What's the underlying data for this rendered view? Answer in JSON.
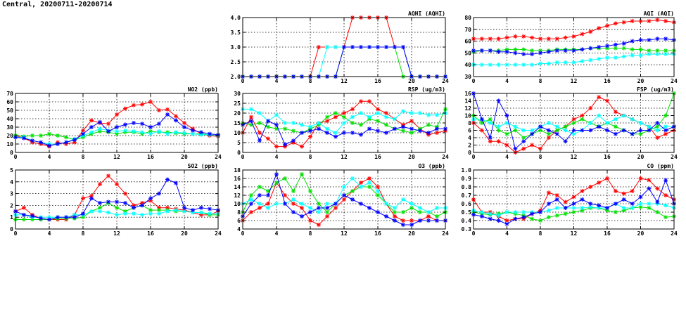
{
  "title": "Central, 20200711-20200714",
  "colors": {
    "red": "#ff0000",
    "green": "#00e000",
    "cyan": "#00ffff",
    "blue": "#0000ff"
  },
  "chart_data": [
    {
      "id": "aqhi",
      "type": "line",
      "title": "AQHI (AQHI)",
      "xlim": [
        0,
        24
      ],
      "xticks": [
        0,
        4,
        8,
        12,
        16,
        20,
        24
      ],
      "ylim": [
        2,
        4
      ],
      "yticks": [
        "2.0",
        "2.5",
        "3.0",
        "3.5",
        "4.0"
      ],
      "grid": true,
      "series": [
        {
          "color": "red",
          "values": [
            2,
            2,
            2,
            2,
            2,
            2,
            2,
            2,
            2,
            3,
            3,
            3,
            3,
            4,
            4,
            4,
            4,
            4,
            3,
            3,
            2,
            2,
            2,
            2,
            2
          ]
        },
        {
          "color": "green",
          "values": [
            2,
            2,
            2,
            2,
            2,
            2,
            2,
            2,
            2,
            2,
            2,
            2,
            3,
            3,
            3,
            3,
            3,
            3,
            3,
            2,
            2,
            2,
            2,
            2,
            2
          ]
        },
        {
          "color": "cyan",
          "values": [
            2,
            2,
            2,
            2,
            2,
            2,
            2,
            2,
            2,
            2,
            3,
            3,
            3,
            3,
            3,
            3,
            3,
            3,
            3,
            3,
            2,
            2,
            2,
            2,
            2
          ]
        },
        {
          "color": "blue",
          "values": [
            2,
            2,
            2,
            2,
            2,
            2,
            2,
            2,
            2,
            2,
            2,
            2,
            3,
            3,
            3,
            3,
            3,
            3,
            3,
            3,
            2,
            2,
            2,
            2,
            2
          ]
        }
      ]
    },
    {
      "id": "aqi",
      "type": "line",
      "title": "AQI (AQI)",
      "xlim": [
        0,
        24
      ],
      "xticks": [
        0,
        4,
        8,
        12,
        16,
        20,
        24
      ],
      "ylim": [
        30,
        80
      ],
      "yticks": [
        "30",
        "40",
        "50",
        "60",
        "70",
        "80"
      ],
      "grid": true,
      "series": [
        {
          "color": "red",
          "values": [
            62,
            62,
            62,
            62,
            63,
            64,
            64,
            63,
            62,
            62,
            62,
            63,
            64,
            66,
            68,
            71,
            73,
            75,
            76,
            77,
            77,
            77,
            78,
            77,
            76
          ]
        },
        {
          "color": "green",
          "values": [
            51,
            52,
            52,
            52,
            53,
            53,
            53,
            52,
            52,
            52,
            53,
            53,
            53,
            53,
            54,
            54,
            54,
            54,
            54,
            53,
            53,
            52,
            52,
            52,
            52
          ]
        },
        {
          "color": "cyan",
          "values": [
            40,
            40,
            40,
            40,
            40,
            40,
            40,
            40,
            41,
            41,
            42,
            42,
            42,
            43,
            44,
            45,
            46,
            46,
            47,
            48,
            48,
            49,
            49,
            49,
            49
          ]
        },
        {
          "color": "blue",
          "values": [
            52,
            52,
            52,
            51,
            51,
            50,
            49,
            49,
            50,
            51,
            52,
            52,
            52,
            53,
            54,
            55,
            56,
            57,
            58,
            60,
            61,
            61,
            62,
            62,
            61
          ]
        }
      ]
    },
    {
      "id": "no2",
      "type": "line",
      "title": "NO2 (ppb)",
      "xlim": [
        0,
        24
      ],
      "xticks": [
        0,
        4,
        8,
        12,
        16,
        20,
        24
      ],
      "ylim": [
        0,
        70
      ],
      "yticks": [
        "0",
        "10",
        "20",
        "30",
        "40",
        "50",
        "60",
        "70"
      ],
      "grid": true,
      "series": [
        {
          "color": "red",
          "values": [
            20,
            17,
            12,
            10,
            7,
            12,
            10,
            12,
            26,
            38,
            35,
            34,
            45,
            52,
            56,
            57,
            60,
            50,
            51,
            43,
            35,
            28,
            22,
            20,
            19
          ]
        },
        {
          "color": "green",
          "values": [
            20,
            19,
            20,
            20,
            22,
            20,
            18,
            15,
            18,
            22,
            25,
            24,
            22,
            24,
            24,
            22,
            25,
            24,
            24,
            23,
            22,
            22,
            22,
            21,
            20
          ]
        },
        {
          "color": "cyan",
          "values": [
            18,
            18,
            14,
            12,
            10,
            10,
            12,
            16,
            20,
            24,
            28,
            26,
            25,
            26,
            25,
            24,
            22,
            25,
            22,
            24,
            23,
            22,
            21,
            21,
            20
          ]
        },
        {
          "color": "blue",
          "values": [
            18,
            17,
            14,
            12,
            8,
            10,
            12,
            15,
            22,
            30,
            36,
            25,
            30,
            33,
            35,
            34,
            30,
            34,
            45,
            38,
            30,
            26,
            24,
            22,
            21
          ]
        }
      ]
    },
    {
      "id": "rsp",
      "type": "line",
      "title": "RSP (ug/m3)",
      "xlim": [
        0,
        24
      ],
      "xticks": [
        0,
        4,
        8,
        12,
        16,
        20,
        24
      ],
      "ylim": [
        0,
        30
      ],
      "yticks": [
        "0",
        "5",
        "10",
        "15",
        "20",
        "25",
        "30"
      ],
      "grid": true,
      "series": [
        {
          "color": "red",
          "values": [
            10,
            18,
            10,
            7,
            3,
            3,
            5,
            3,
            8,
            15,
            16,
            18,
            20,
            22,
            26,
            26,
            22,
            20,
            17,
            14,
            16,
            12,
            9,
            10,
            11
          ]
        },
        {
          "color": "green",
          "values": [
            15,
            14,
            15,
            13,
            12,
            12,
            11,
            10,
            12,
            14,
            18,
            20,
            18,
            15,
            14,
            17,
            16,
            14,
            12,
            11,
            10,
            12,
            14,
            13,
            22
          ]
        },
        {
          "color": "cyan",
          "values": [
            22,
            22,
            20,
            16,
            19,
            15,
            15,
            14,
            13,
            15,
            12,
            10,
            15,
            18,
            20,
            18,
            20,
            18,
            17,
            21,
            20,
            20,
            19,
            19,
            20
          ]
        },
        {
          "color": "blue",
          "values": [
            14,
            16,
            6,
            16,
            14,
            4,
            6,
            10,
            11,
            12,
            10,
            8,
            10,
            10,
            9,
            12,
            11,
            10,
            12,
            13,
            12,
            11,
            10,
            12,
            12
          ]
        }
      ]
    },
    {
      "id": "fsp",
      "type": "line",
      "title": "FSP (ug/m3)",
      "xlim": [
        0,
        24
      ],
      "xticks": [
        0,
        4,
        8,
        12,
        16,
        20,
        24
      ],
      "ylim": [
        0,
        16
      ],
      "yticks": [
        "0",
        "2",
        "4",
        "6",
        "8",
        "10",
        "12",
        "14",
        "16"
      ],
      "grid": true,
      "series": [
        {
          "color": "red",
          "values": [
            8,
            6,
            3,
            3,
            2,
            0,
            1,
            2,
            1,
            4,
            6,
            7,
            9,
            10,
            12,
            15,
            14,
            11,
            10,
            9,
            8,
            7,
            4,
            5,
            6
          ]
        },
        {
          "color": "green",
          "values": [
            10,
            8,
            9,
            6,
            5,
            6,
            4,
            5,
            6,
            5,
            6,
            7,
            8,
            9,
            8,
            7,
            8,
            7,
            6,
            5,
            5,
            6,
            7,
            10,
            16
          ]
        },
        {
          "color": "cyan",
          "values": [
            9,
            9,
            8,
            7,
            8,
            7,
            6,
            6,
            7,
            8,
            7,
            6,
            5,
            6,
            8,
            10,
            8,
            9,
            10,
            9,
            8,
            7,
            6,
            7,
            7
          ]
        },
        {
          "color": "blue",
          "values": [
            16,
            9,
            4,
            14,
            10,
            1,
            3,
            5,
            7,
            6,
            5,
            3,
            6,
            6,
            6,
            7,
            6,
            5,
            6,
            5,
            6,
            6,
            8,
            6,
            7
          ]
        }
      ]
    },
    {
      "id": "so2",
      "type": "line",
      "title": "SO2 (ppb)",
      "xlim": [
        0,
        24
      ],
      "xticks": [
        0,
        4,
        8,
        12,
        16,
        20,
        24
      ],
      "ylim": [
        0,
        5
      ],
      "yticks": [
        "0",
        "1",
        "2",
        "3",
        "4",
        "5"
      ],
      "grid": true,
      "series": [
        {
          "color": "red",
          "values": [
            1.5,
            1.8,
            1.2,
            0.9,
            0.8,
            0.8,
            0.8,
            1.2,
            2.6,
            2.8,
            3.8,
            4.5,
            3.8,
            3.0,
            2.0,
            2.2,
            2.4,
            1.8,
            1.8,
            1.7,
            1.6,
            1.4,
            1.2,
            1.2,
            1.5
          ]
        },
        {
          "color": "green",
          "values": [
            0.8,
            0.8,
            0.8,
            0.8,
            0.8,
            0.9,
            0.9,
            0.9,
            1.0,
            1.5,
            1.8,
            2.2,
            1.8,
            1.5,
            1.8,
            2.0,
            1.6,
            1.6,
            1.6,
            1.5,
            1.5,
            1.4,
            1.4,
            1.2,
            1.2
          ]
        },
        {
          "color": "cyan",
          "values": [
            1.2,
            1.2,
            1.0,
            1.0,
            1.0,
            1.0,
            1.0,
            1.2,
            1.2,
            1.5,
            1.5,
            1.4,
            1.2,
            1.3,
            1.3,
            1.2,
            1.3,
            1.3,
            1.5,
            1.6,
            1.5,
            1.4,
            1.4,
            1.3,
            1.3
          ]
        },
        {
          "color": "blue",
          "values": [
            1.5,
            1.2,
            1.1,
            0.9,
            0.8,
            1.0,
            1.0,
            1.0,
            1.3,
            2.6,
            2.2,
            2.3,
            2.3,
            2.2,
            1.8,
            2.0,
            2.6,
            3.0,
            4.2,
            3.9,
            1.8,
            1.6,
            1.8,
            1.7,
            1.6
          ]
        }
      ]
    },
    {
      "id": "o3",
      "type": "line",
      "title": "O3 (ppb)",
      "xlim": [
        0,
        24
      ],
      "xticks": [
        0,
        4,
        8,
        12,
        16,
        20,
        24
      ],
      "ylim": [
        4,
        18
      ],
      "yticks": [
        "4",
        "6",
        "8",
        "10",
        "12",
        "14",
        "16",
        "18"
      ],
      "grid": true,
      "series": [
        {
          "color": "red",
          "values": [
            6,
            8,
            9,
            10,
            15,
            12,
            10,
            9,
            6,
            5,
            7,
            9,
            11,
            13,
            15,
            16,
            14,
            10,
            7,
            6,
            6,
            6,
            7,
            6,
            6
          ]
        },
        {
          "color": "green",
          "values": [
            8,
            12,
            14,
            13,
            15,
            16,
            13,
            17,
            13,
            10,
            8,
            10,
            12,
            13,
            14,
            14,
            12,
            10,
            8,
            8,
            9,
            8,
            8,
            7,
            8
          ]
        },
        {
          "color": "cyan",
          "values": [
            10,
            11,
            10,
            9,
            10,
            10,
            11,
            10,
            9,
            8,
            10,
            10,
            14,
            16,
            14,
            15,
            13,
            10,
            9,
            11,
            10,
            9,
            8,
            9,
            9
          ]
        },
        {
          "color": "blue",
          "values": [
            7,
            10,
            12,
            12,
            17,
            10,
            8,
            7,
            8,
            9,
            9,
            10,
            12,
            11,
            10,
            9,
            8,
            7,
            6,
            5,
            5,
            6,
            6,
            6,
            6
          ]
        }
      ]
    },
    {
      "id": "co",
      "type": "line",
      "title": "CO (ppm)",
      "xlim": [
        0,
        24
      ],
      "xticks": [
        0,
        4,
        8,
        12,
        16,
        20,
        24
      ],
      "ylim": [
        0.3,
        1.0
      ],
      "yticks": [
        "0.3",
        "0.4",
        "0.5",
        "0.6",
        "0.7",
        "0.8",
        "0.9",
        "1.0"
      ],
      "grid": true,
      "series": [
        {
          "color": "red",
          "values": [
            0.65,
            0.5,
            0.5,
            0.45,
            0.4,
            0.42,
            0.42,
            0.48,
            0.52,
            0.73,
            0.7,
            0.62,
            0.68,
            0.75,
            0.8,
            0.85,
            0.9,
            0.75,
            0.72,
            0.75,
            0.9,
            0.88,
            0.78,
            0.7,
            0.65
          ]
        },
        {
          "color": "green",
          "values": [
            0.5,
            0.48,
            0.47,
            0.48,
            0.5,
            0.48,
            0.46,
            0.42,
            0.4,
            0.44,
            0.46,
            0.48,
            0.5,
            0.52,
            0.55,
            0.55,
            0.52,
            0.5,
            0.52,
            0.55,
            0.56,
            0.55,
            0.5,
            0.44,
            0.45
          ]
        },
        {
          "color": "cyan",
          "values": [
            0.52,
            0.5,
            0.48,
            0.46,
            0.5,
            0.5,
            0.5,
            0.5,
            0.5,
            0.52,
            0.55,
            0.55,
            0.55,
            0.55,
            0.56,
            0.55,
            0.55,
            0.6,
            0.55,
            0.55,
            0.6,
            0.6,
            0.6,
            0.58,
            0.55
          ]
        },
        {
          "color": "blue",
          "values": [
            0.47,
            0.45,
            0.42,
            0.4,
            0.36,
            0.42,
            0.44,
            0.48,
            0.5,
            0.6,
            0.65,
            0.55,
            0.6,
            0.65,
            0.6,
            0.58,
            0.55,
            0.6,
            0.65,
            0.6,
            0.68,
            0.78,
            0.62,
            0.88,
            0.6
          ]
        }
      ]
    }
  ]
}
